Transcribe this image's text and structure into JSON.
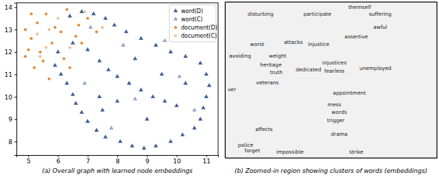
{
  "chart_data": [
    {
      "type": "scatter",
      "title": "(a) Overall graph with learned node embeddings",
      "xlim": [
        4.6,
        11.4
      ],
      "ylim": [
        7.4,
        14.2
      ],
      "xticks": [
        5,
        6,
        7,
        8,
        9,
        10,
        11
      ],
      "yticks": [
        8,
        9,
        10,
        11,
        12,
        13,
        14
      ],
      "grid": false,
      "legend": "upper right",
      "series": [
        {
          "name": "word(D)",
          "color": "#3f5f95",
          "marker": "triangle",
          "x": [
            6.4,
            6.8,
            7.2,
            7.6,
            7.9,
            8.3,
            8.8,
            9.3,
            9.8,
            10.3,
            10.8,
            11.0,
            11.1,
            11.0,
            10.9,
            10.8,
            10.6,
            10.2,
            9.8,
            9.3,
            8.9,
            8.5,
            8.1,
            7.6,
            7.3,
            7.0,
            6.8,
            6.6,
            6.5,
            6.3,
            6.1,
            5.9,
            6.0,
            6.5,
            7.0,
            7.4,
            7.7,
            8.0,
            8.4,
            8.8,
            9.2,
            9.6,
            10.0,
            8.0,
            7.4,
            9.0,
            9.5,
            8.6,
            7.5,
            10.3
          ],
          "values": [
            13.6,
            13.8,
            13.7,
            13.5,
            13.2,
            12.9,
            12.6,
            12.3,
            12.0,
            11.8,
            11.5,
            11.0,
            10.5,
            10.0,
            9.5,
            9.0,
            8.6,
            8.3,
            8.0,
            7.8,
            7.7,
            7.8,
            8.0,
            8.2,
            8.5,
            8.9,
            9.3,
            9.7,
            10.1,
            10.6,
            11.0,
            11.4,
            12.0,
            12.4,
            12.1,
            11.6,
            11.2,
            10.9,
            10.6,
            10.3,
            10.0,
            9.8,
            9.6,
            9.8,
            10.0,
            9.0,
            11.0,
            11.7,
            9.4,
            10.6
          ]
        },
        {
          "name": "word(C)",
          "color": "#8fa9cc",
          "marker": "triangle",
          "x": [
            7.1,
            8.6,
            10.1,
            7.8,
            9.6,
            6.9,
            10.6,
            8.2
          ],
          "values": [
            13.1,
            9.9,
            10.9,
            8.6,
            12.5,
            10.6,
            9.4,
            12.3
          ]
        },
        {
          "name": "document(D)",
          "color": "#e8893a",
          "marker": "circle",
          "x": [
            4.9,
            5.1,
            5.3,
            5.6,
            5.0,
            5.4,
            5.8,
            6.1,
            5.5,
            5.2,
            6.3,
            6.7,
            5.9,
            6.6,
            7.3,
            6.2,
            5.7,
            6.4,
            7.0,
            5.1,
            4.9,
            6.8
          ],
          "values": [
            13.0,
            12.6,
            13.3,
            13.7,
            12.1,
            12.0,
            12.4,
            12.9,
            11.6,
            11.3,
            13.9,
            13.2,
            13.1,
            12.7,
            12.9,
            11.7,
            10.8,
            11.3,
            13.5,
            13.7,
            11.8,
            12.4
          ]
        },
        {
          "name": "document(C)",
          "color": "#f3c08c",
          "marker": "circle",
          "x": [
            5.3,
            5.7,
            6.0,
            5.4,
            6.4,
            6.9,
            5.6,
            7.5
          ],
          "values": [
            12.8,
            13.0,
            13.5,
            11.8,
            12.2,
            13.8,
            12.2,
            13.1
          ]
        }
      ]
    },
    {
      "type": "text_scatter",
      "title": "(b) Zoomed-in region showing clusters of words (embeddings)",
      "tick_labels": false,
      "xlim": [
        0,
        310
      ],
      "ylim": [
        0,
        230
      ],
      "labels": [
        "themself",
        "suffering",
        "disturbing",
        "participate",
        "awful",
        "assertive",
        "attacks",
        "injustice",
        "worst",
        "avoiding",
        "weight",
        "heritage",
        "truth",
        "dedicated",
        "injustices",
        "fearless",
        "unemployed",
        "veterans",
        "appointment",
        "mess",
        "words",
        "trigger",
        "drama",
        "affects",
        "police",
        "forget",
        "impossible",
        "strike",
        "ver"
      ],
      "x": [
        197,
        227,
        52,
        135,
        227,
        192,
        100,
        137,
        47,
        22,
        77,
        67,
        75,
        122,
        160,
        160,
        220,
        62,
        182,
        160,
        167,
        162,
        167,
        57,
        30,
        40,
        95,
        192,
        10
      ],
      "values": [
        222,
        212,
        212,
        212,
        193,
        178,
        170,
        167,
        167,
        150,
        150,
        137,
        126,
        130,
        140,
        128,
        132,
        110,
        95,
        78,
        67,
        55,
        35,
        42,
        18,
        10,
        8,
        8,
        100
      ]
    }
  ]
}
